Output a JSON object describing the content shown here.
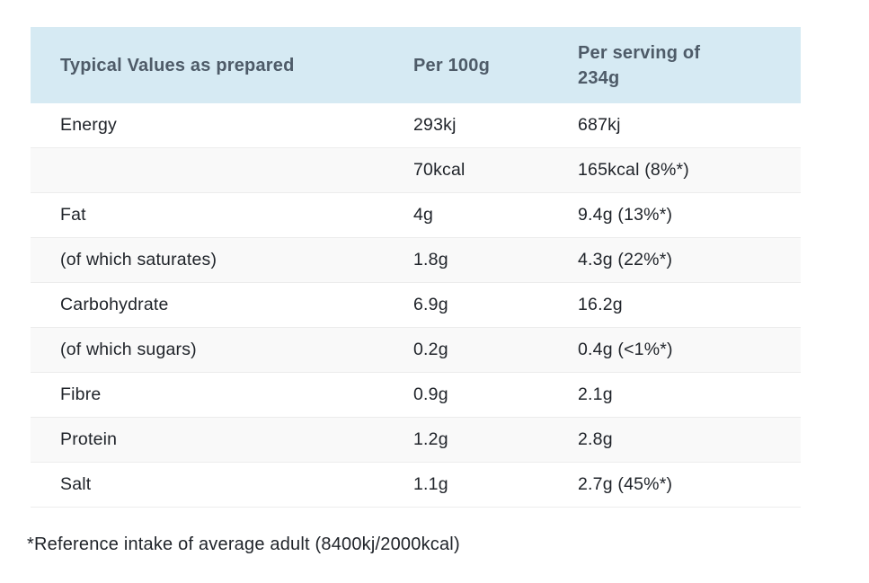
{
  "table": {
    "header": {
      "col1": "Typical Values as prepared",
      "col2": "Per 100g",
      "col3_line1": "Per serving of",
      "col3_line2": "234g"
    },
    "rows": [
      {
        "label": "Energy",
        "per_100g": "293kj",
        "per_serving": "687kj"
      },
      {
        "label": "",
        "per_100g": "70kcal",
        "per_serving": "165kcal (8%*)"
      },
      {
        "label": "Fat",
        "per_100g": "4g",
        "per_serving": "9.4g (13%*)"
      },
      {
        "label": "(of which saturates)",
        "per_100g": "1.8g",
        "per_serving": "4.3g (22%*)"
      },
      {
        "label": "Carbohydrate",
        "per_100g": "6.9g",
        "per_serving": "16.2g"
      },
      {
        "label": "(of which sugars)",
        "per_100g": "0.2g",
        "per_serving": "0.4g (<1%*)"
      },
      {
        "label": "Fibre",
        "per_100g": "0.9g",
        "per_serving": "2.1g"
      },
      {
        "label": "Protein",
        "per_100g": "1.2g",
        "per_serving": "2.8g"
      },
      {
        "label": "Salt",
        "per_100g": "1.1g",
        "per_serving": "2.7g (45%*)"
      }
    ]
  },
  "footnote": "*Reference intake of average adult (8400kj/2000kcal)",
  "colors": {
    "header_bg": "#d6eaf3",
    "header_text": "#4e5b68",
    "body_text": "#20242a",
    "alt_row_bg": "#f9f9f9",
    "row_border": "#ececec"
  },
  "chart_data": {
    "type": "table",
    "title": "Typical Values as prepared",
    "columns": [
      "Typical Values as prepared",
      "Per 100g",
      "Per serving of 234g"
    ],
    "rows": [
      [
        "Energy",
        "293kj",
        "687kj"
      ],
      [
        "",
        "70kcal",
        "165kcal (8%*)"
      ],
      [
        "Fat",
        "4g",
        "9.4g (13%*)"
      ],
      [
        "(of which saturates)",
        "1.8g",
        "4.3g (22%*)"
      ],
      [
        "Carbohydrate",
        "6.9g",
        "16.2g"
      ],
      [
        "(of which sugars)",
        "0.2g",
        "0.4g (<1%*)"
      ],
      [
        "Fibre",
        "0.9g",
        "2.1g"
      ],
      [
        "Protein",
        "1.2g",
        "2.8g"
      ],
      [
        "Salt",
        "1.1g",
        "2.7g (45%*)"
      ]
    ],
    "footnote": "*Reference intake of average adult (8400kj/2000kcal)"
  }
}
